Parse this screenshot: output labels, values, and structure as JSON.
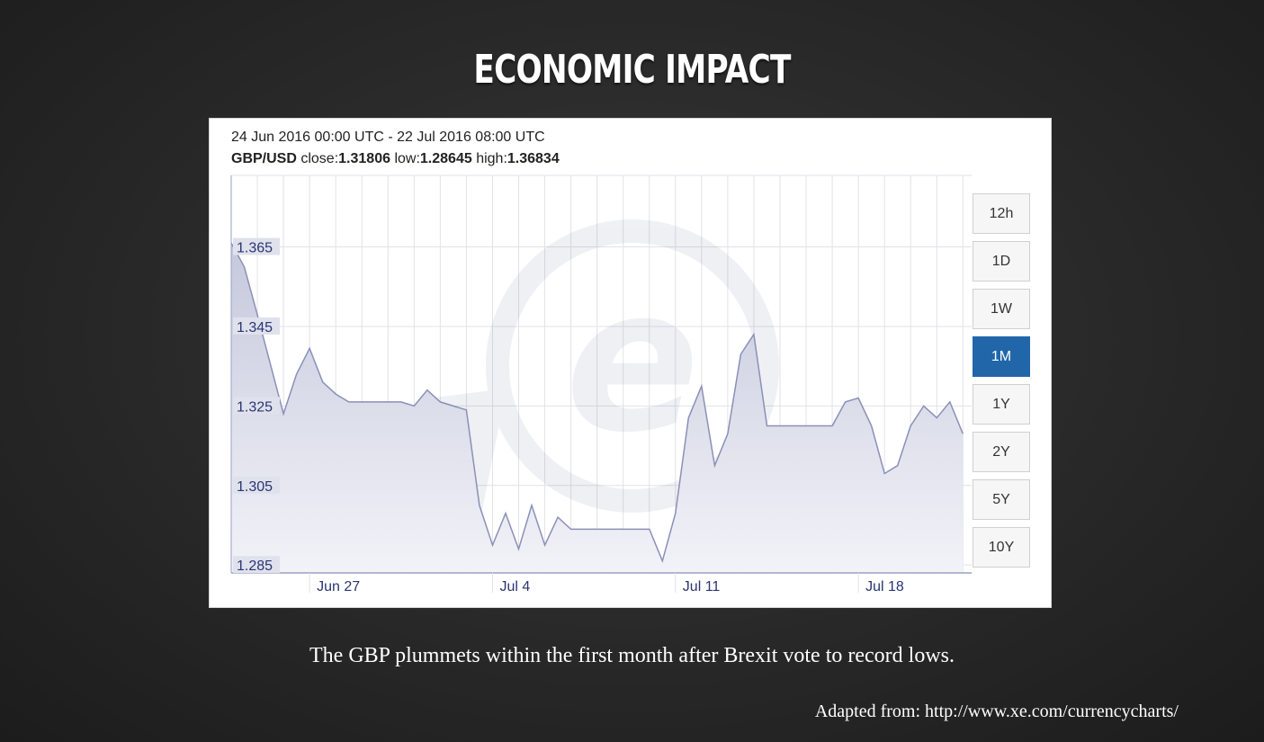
{
  "slide": {
    "title": "ECONOMIC IMPACT",
    "caption": "The GBP plummets within the first month after Brexit vote to record lows.",
    "source": "Adapted from: http://www.xe.com/currencycharts/"
  },
  "header": {
    "range": "24 Jun 2016 00:00 UTC - 22 Jul 2016 08:00 UTC",
    "pair": "GBP/USD",
    "close_label": " close:",
    "close_value": "1.31806",
    "low_label": " low:",
    "low_value": "1.28645",
    "high_label": " high:",
    "high_value": "1.36834"
  },
  "timeframes": [
    {
      "label": "12h",
      "active": false
    },
    {
      "label": "1D",
      "active": false
    },
    {
      "label": "1W",
      "active": false
    },
    {
      "label": "1M",
      "active": true
    },
    {
      "label": "1Y",
      "active": false
    },
    {
      "label": "2Y",
      "active": false
    },
    {
      "label": "5Y",
      "active": false
    },
    {
      "label": "10Y",
      "active": false
    }
  ],
  "chart_data": {
    "type": "area",
    "title": "",
    "series": [
      {
        "x": [
          "2016-06-24",
          "2016-06-24 12:00",
          "2016-06-25",
          "2016-06-26",
          "2016-06-26 12:00",
          "2016-06-27",
          "2016-06-27 12:00",
          "2016-06-28",
          "2016-06-28 12:00",
          "2016-06-29",
          "2016-06-29 12:00",
          "2016-06-30",
          "2016-06-30 12:00",
          "2016-07-01",
          "2016-07-01 12:00",
          "2016-07-02",
          "2016-07-03",
          "2016-07-03 12:00",
          "2016-07-04",
          "2016-07-04 12:00",
          "2016-07-05",
          "2016-07-05 12:00",
          "2016-07-06",
          "2016-07-06 12:00",
          "2016-07-07",
          "2016-07-07 12:00",
          "2016-07-08",
          "2016-07-08 12:00",
          "2016-07-09",
          "2016-07-10",
          "2016-07-10 12:00",
          "2016-07-11",
          "2016-07-11 12:00",
          "2016-07-12",
          "2016-07-12 12:00",
          "2016-07-13",
          "2016-07-13 12:00",
          "2016-07-14",
          "2016-07-14 12:00",
          "2016-07-15",
          "2016-07-15 12:00",
          "2016-07-16",
          "2016-07-17",
          "2016-07-17 12:00",
          "2016-07-18",
          "2016-07-18 12:00",
          "2016-07-19",
          "2016-07-19 12:00",
          "2016-07-20",
          "2016-07-20 12:00",
          "2016-07-21",
          "2016-07-21 12:00",
          "2016-07-22"
        ],
        "y": [
          1.366,
          1.36,
          1.348,
          1.323,
          1.333,
          1.3395,
          1.331,
          1.328,
          1.326,
          1.326,
          1.326,
          1.326,
          1.326,
          1.325,
          1.329,
          1.326,
          1.324,
          1.3,
          1.29,
          1.298,
          1.289,
          1.3,
          1.29,
          1.297,
          1.294,
          1.294,
          1.294,
          1.294,
          1.294,
          1.294,
          1.286,
          1.298,
          1.322,
          1.33,
          1.31,
          1.318,
          1.338,
          1.343,
          1.32,
          1.32,
          1.32,
          1.32,
          1.32,
          1.326,
          1.327,
          1.32,
          1.308,
          1.31,
          1.32,
          1.325,
          1.322,
          1.326,
          1.318
        ]
      }
    ],
    "xticks": [
      "Jun 27",
      "Jul 4",
      "Jul 11",
      "Jul 18"
    ],
    "xtick_values": [
      "2016-06-27",
      "2016-07-04",
      "2016-07-11",
      "2016-07-18"
    ],
    "yticks": [
      1.285,
      1.305,
      1.325,
      1.345,
      1.365
    ],
    "ytick_labels": [
      "1.285",
      "1.305",
      "1.325",
      "1.345",
      "1.365"
    ],
    "xlim": [
      "2016-06-24",
      "2016-07-22 08:00"
    ],
    "ylim": [
      1.283,
      1.383
    ],
    "grid": true,
    "watermark": "xe-logo",
    "colors": {
      "line": "#8a90b8",
      "fill_top": "#c5c8dc",
      "fill_bottom": "#f2f3f8",
      "grid": "#e2e2e8",
      "axis": "#9aa0c4",
      "tick_text": "#2a3572",
      "active_button": "#2266aa"
    }
  }
}
